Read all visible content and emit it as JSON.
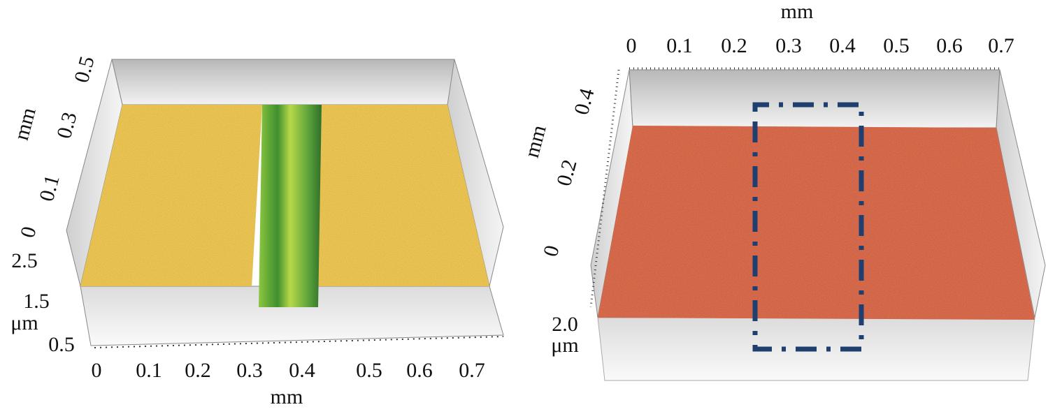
{
  "left_panel": {
    "x_axis": {
      "label": "mm",
      "ticks": [
        "0",
        "0.1",
        "0.2",
        "0.3",
        "0.4",
        "0.5",
        "0.6",
        "0.7"
      ]
    },
    "y_axis": {
      "label": "mm",
      "ticks": [
        "0",
        "0.1",
        "0.3",
        "0.5"
      ]
    },
    "z_axis": {
      "label": "μm",
      "ticks": [
        "0.5",
        "1.5",
        "2.5"
      ]
    }
  },
  "right_panel": {
    "x_axis": {
      "label": "mm",
      "ticks": [
        "0",
        "0.1",
        "0.2",
        "0.3",
        "0.4",
        "0.5",
        "0.6",
        "0.7"
      ]
    },
    "y_axis": {
      "label": "mm",
      "ticks": [
        "0",
        "0.2",
        "0.4"
      ]
    },
    "z_axis": {
      "label": "μm",
      "ticks": [
        "2.0"
      ]
    }
  }
}
